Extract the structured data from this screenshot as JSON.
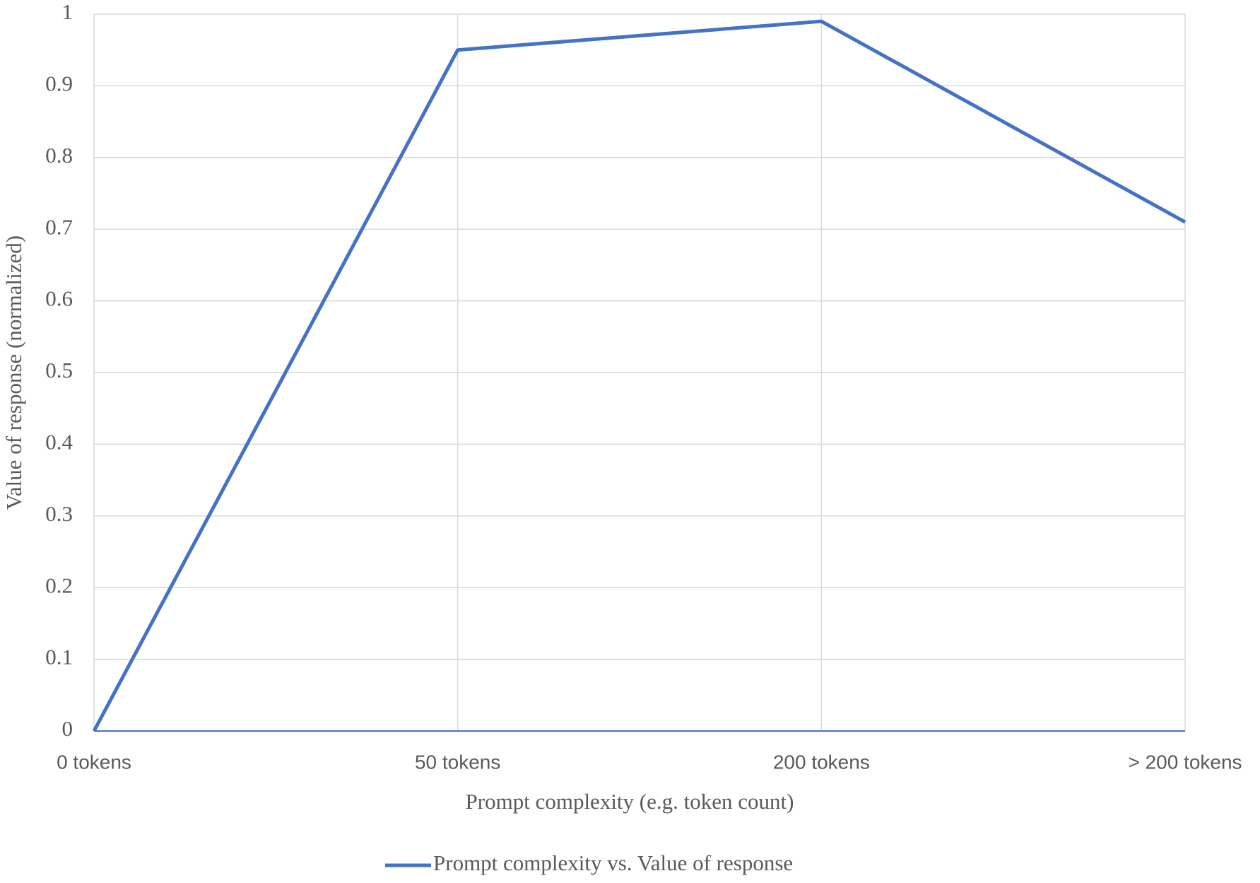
{
  "chart_data": {
    "type": "line",
    "x_label": "Prompt complexity (e.g. token count)",
    "y_label": "Value of response (normalized)",
    "categories": [
      "0 tokens",
      "50 tokens",
      "200 tokens",
      "> 200 tokens"
    ],
    "series": [
      {
        "name": "Prompt complexity vs. Value of response",
        "color": "#4472c4",
        "values": [
          0,
          0.95,
          0.99,
          0.71
        ]
      }
    ],
    "ylim": [
      0,
      1
    ],
    "yticks": [
      0,
      0.1,
      0.2,
      0.3,
      0.4,
      0.5,
      0.6,
      0.7,
      0.8,
      0.9,
      1
    ],
    "grid": true,
    "legend": "bottom"
  }
}
